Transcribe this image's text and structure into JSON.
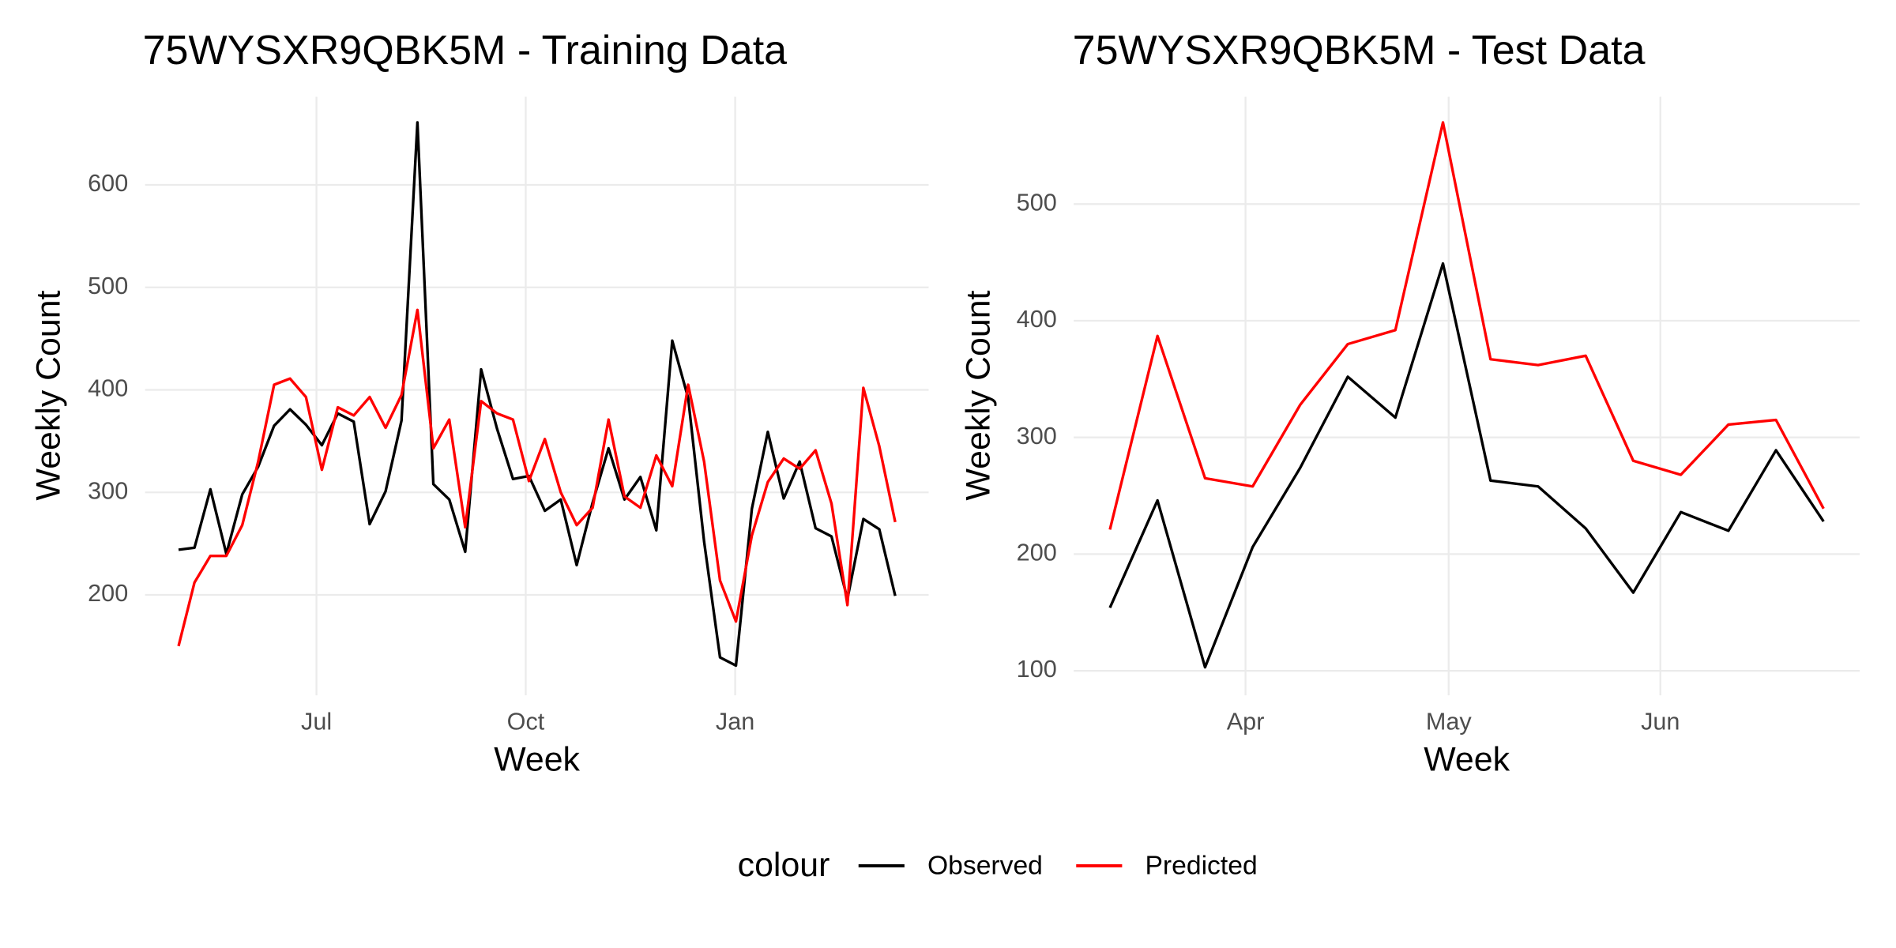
{
  "chart_data": [
    {
      "type": "line",
      "title": "75WYSXR9QBK5M - Training Data",
      "xlabel": "Week",
      "ylabel": "Weekly Count",
      "legend_title": "colour",
      "grid": true,
      "x": [
        0,
        1,
        2,
        3,
        4,
        5,
        6,
        7,
        8,
        9,
        10,
        11,
        12,
        13,
        14,
        15,
        16,
        17,
        18,
        19,
        20,
        21,
        22,
        23,
        24,
        25,
        26,
        27,
        28,
        29,
        30,
        31,
        32,
        33,
        34,
        35,
        36,
        37,
        38,
        39,
        40,
        41,
        42,
        43,
        44,
        45
      ],
      "xlim": [
        -2.1,
        47.1
      ],
      "xticks": [
        {
          "value": 8.66,
          "label": "Jul"
        },
        {
          "value": 21.8,
          "label": "Oct"
        },
        {
          "value": 34.95,
          "label": "Jan"
        }
      ],
      "ylim": [
        102,
        686
      ],
      "yticks": [
        200,
        300,
        400,
        500,
        600
      ],
      "series": [
        {
          "name": "Observed",
          "color": "#000000",
          "values": [
            244,
            246,
            303,
            240,
            298,
            325,
            365,
            381,
            366,
            346,
            377,
            369,
            269,
            301,
            370,
            661,
            308,
            293,
            242,
            420,
            362,
            313,
            316,
            282,
            293,
            229,
            290,
            343,
            293,
            315,
            263,
            448,
            392,
            252,
            139,
            131,
            284,
            359,
            294,
            330,
            265,
            257,
            196,
            274,
            264,
            199
          ]
        },
        {
          "name": "Predicted",
          "color": "#ff0000",
          "values": [
            150,
            212,
            238,
            238,
            268,
            330,
            405,
            411,
            393,
            322,
            383,
            375,
            393,
            363,
            395,
            478,
            343,
            371,
            266,
            389,
            377,
            371,
            311,
            352,
            300,
            268,
            285,
            371,
            296,
            285,
            336,
            306,
            405,
            330,
            214,
            174,
            258,
            310,
            333,
            323,
            341,
            289,
            190,
            402,
            345,
            271
          ]
        }
      ]
    },
    {
      "type": "line",
      "title": "75WYSXR9QBK5M - Test Data",
      "xlabel": "Week",
      "ylabel": "Weekly Count",
      "grid": true,
      "x": [
        0,
        1,
        2,
        3,
        4,
        5,
        6,
        7,
        8,
        9,
        10,
        11,
        12,
        13,
        14,
        15
      ],
      "xlim": [
        -0.76,
        15.76
      ],
      "xticks": [
        {
          "value": 2.85,
          "label": "Apr"
        },
        {
          "value": 7.12,
          "label": "May"
        },
        {
          "value": 11.57,
          "label": "Jun"
        }
      ],
      "ylim": [
        79,
        592
      ],
      "yticks": [
        100,
        200,
        300,
        400,
        500
      ],
      "series": [
        {
          "name": "Observed",
          "color": "#000000",
          "values": [
            154,
            246,
            103,
            206,
            274,
            352,
            317,
            449,
            263,
            258,
            222,
            167,
            236,
            220,
            289,
            228
          ]
        },
        {
          "name": "Predicted",
          "color": "#ff0000",
          "values": [
            221,
            387,
            265,
            258,
            328,
            380,
            392,
            570,
            367,
            362,
            370,
            280,
            268,
            311,
            315,
            239
          ]
        }
      ]
    }
  ]
}
